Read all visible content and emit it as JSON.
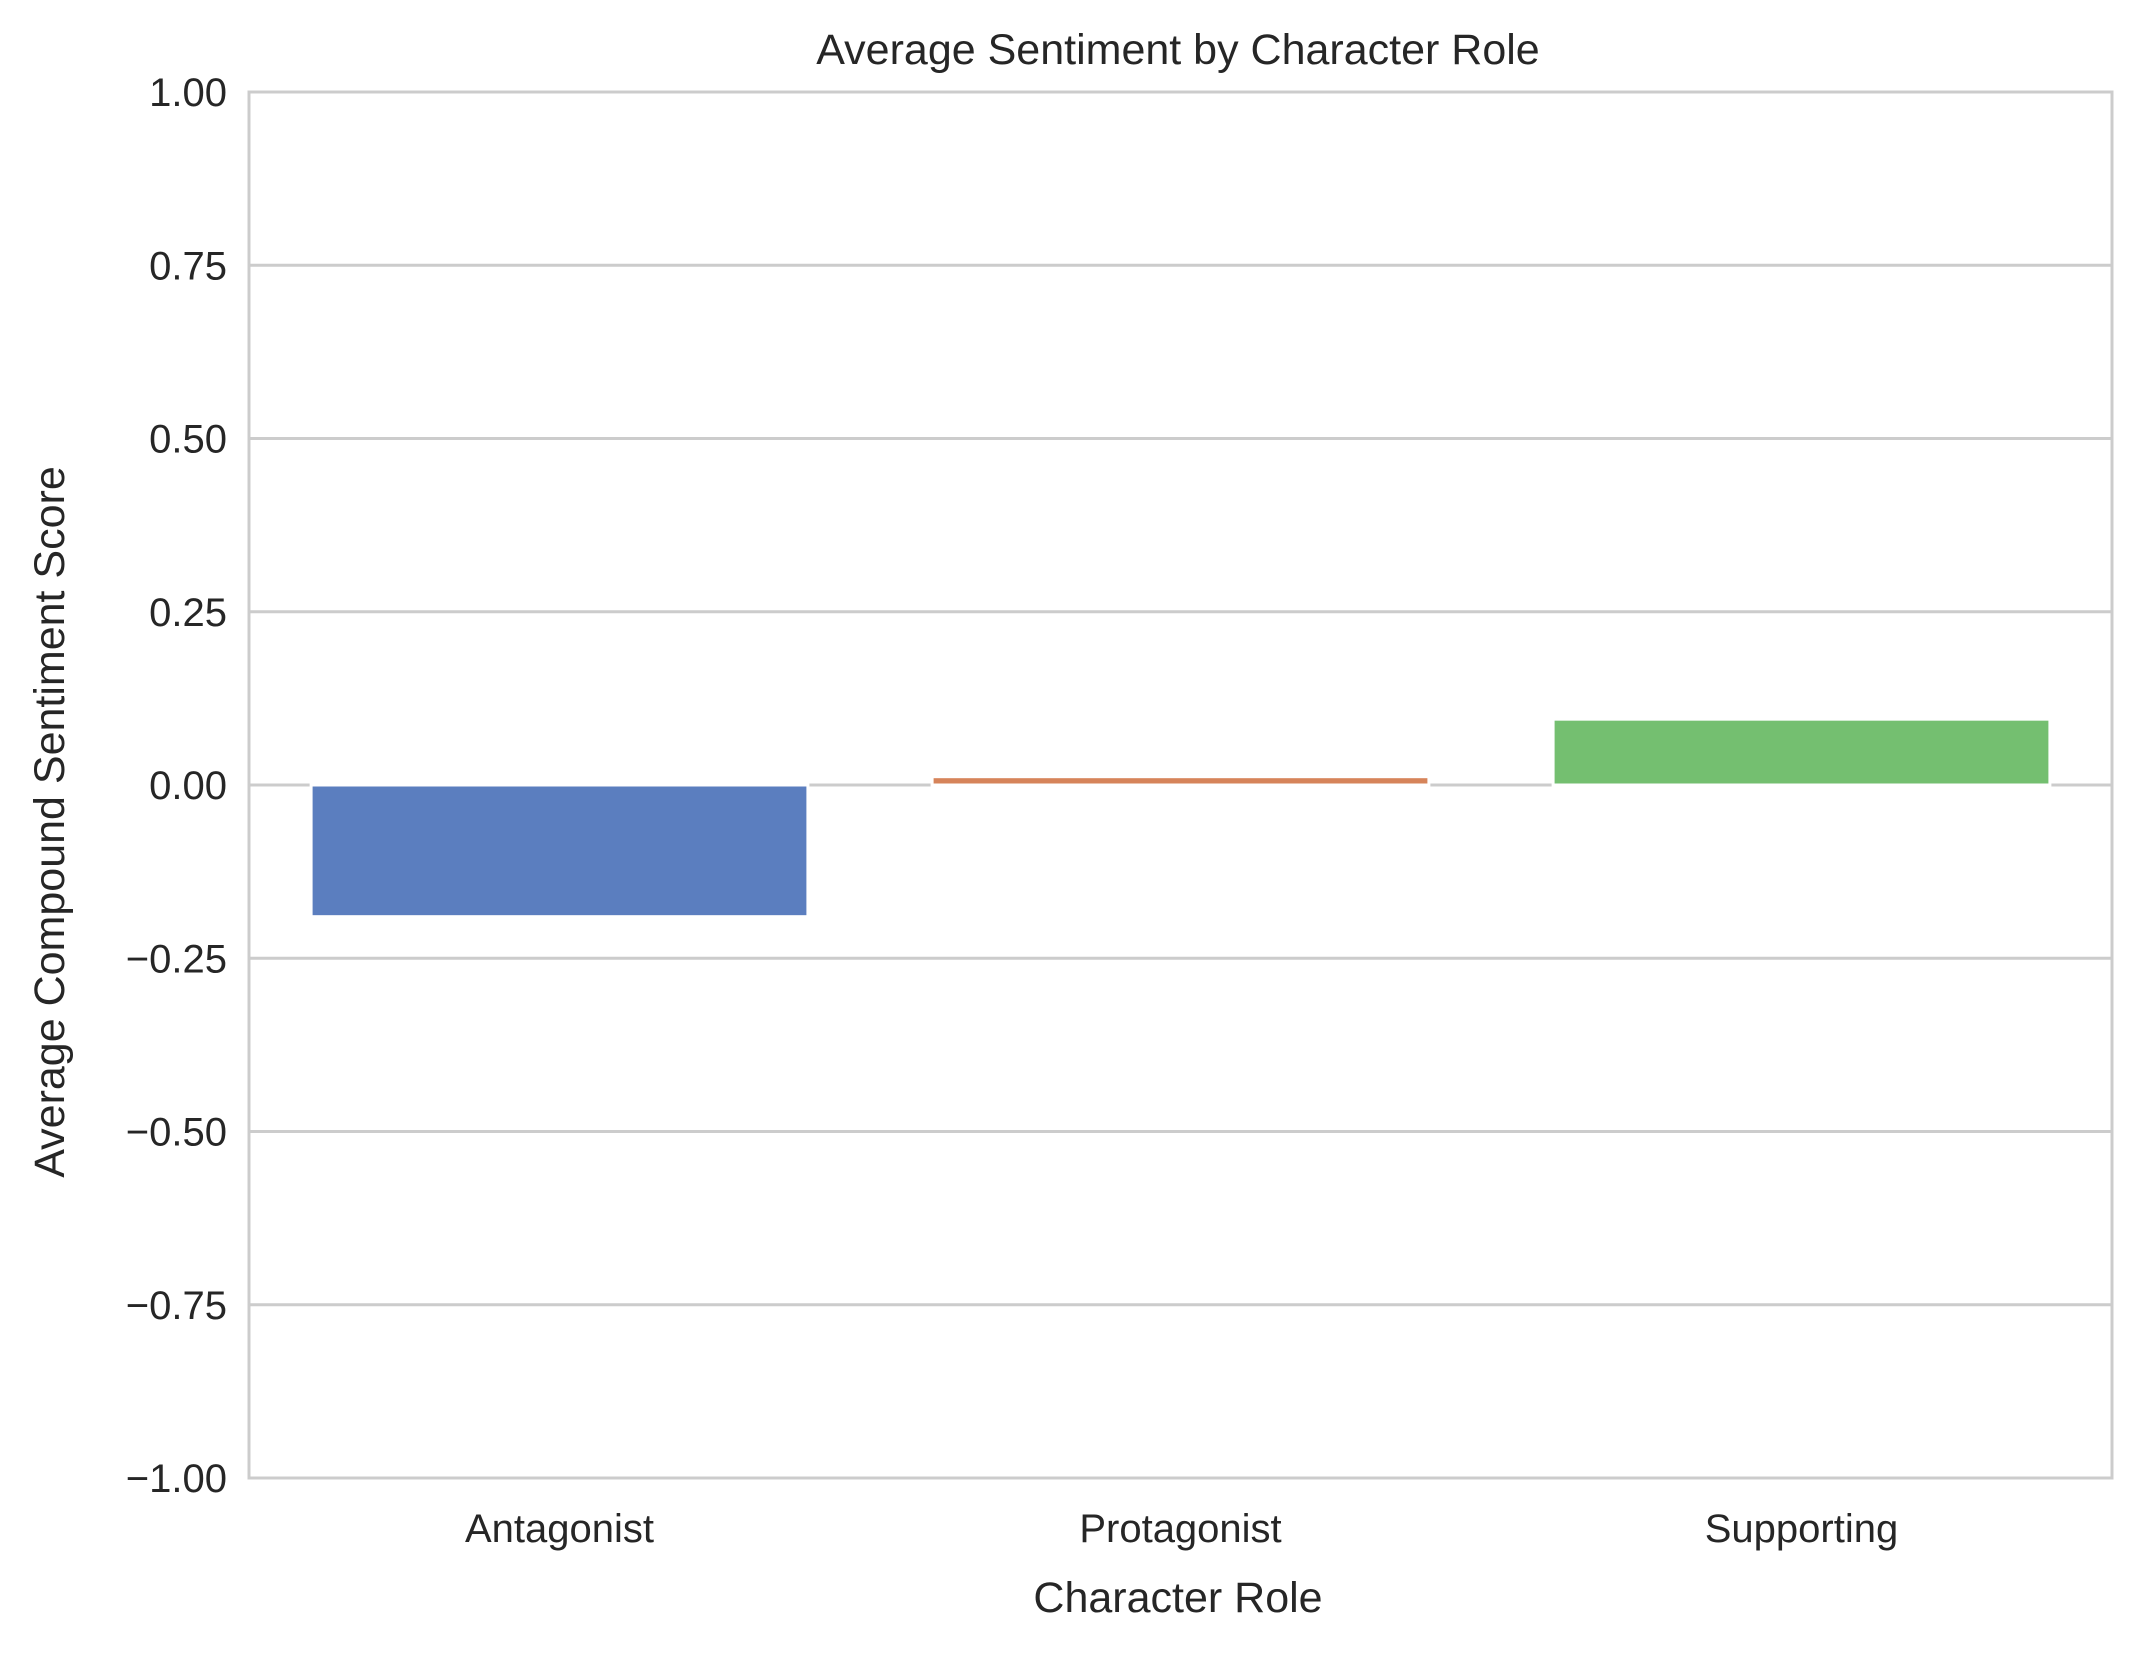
{
  "chart_data": {
    "type": "bar",
    "title": "Average Sentiment by Character Role",
    "xlabel": "Character Role",
    "ylabel": "Average Compound Sentiment Score",
    "categories": [
      "Antagonist",
      "Protagonist",
      "Supporting"
    ],
    "values": [
      -0.19,
      0.012,
      0.095
    ],
    "colors": [
      "#5b7ebf",
      "#d6845a",
      "#74bf70"
    ],
    "ylim": [
      -1.0,
      1.0
    ],
    "yticks": [
      1.0,
      0.75,
      0.5,
      0.25,
      0.0,
      -0.25,
      -0.5,
      -0.75,
      -1.0
    ],
    "ytick_labels": [
      "1.00",
      "0.75",
      "0.50",
      "0.25",
      "0.00",
      "−0.25",
      "−0.50",
      "−0.75",
      "−1.00"
    ],
    "grid": "horizontal",
    "legend": "none"
  }
}
